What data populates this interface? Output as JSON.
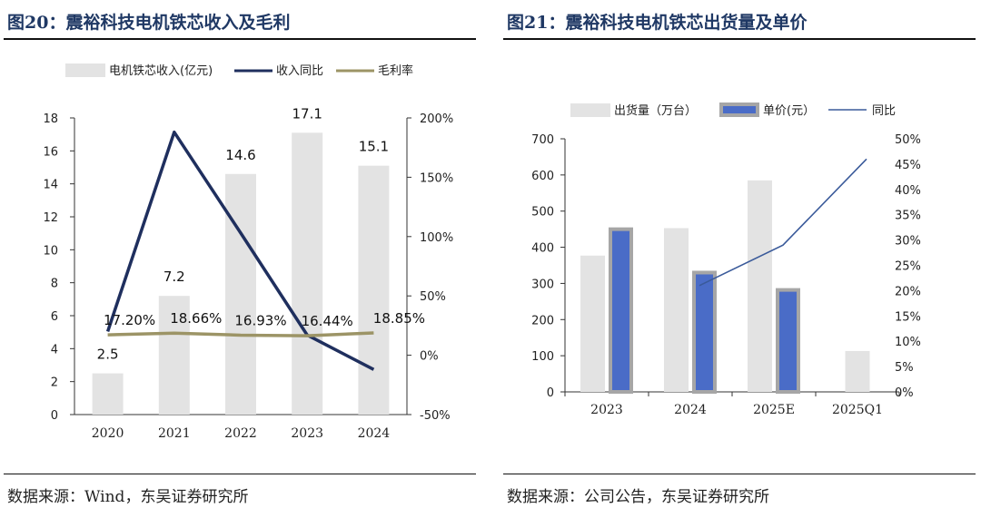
{
  "figure20": {
    "title": "图20：震裕科技电机铁芯收入及毛利",
    "source": "数据来源：Wind，东吴证券研究所"
  },
  "figure21": {
    "title": "图21：震裕科技电机铁芯出货量及单价",
    "source": "数据来源：公司公告，东吴证券研究所"
  },
  "chart_data": [
    {
      "type": "bar",
      "categories": [
        "2020",
        "2021",
        "2022",
        "2023",
        "2024"
      ],
      "series": [
        {
          "name": "电机铁芯收入(亿元)",
          "type": "bar",
          "axis": "left",
          "values": [
            2.5,
            7.2,
            14.6,
            17.1,
            15.1
          ],
          "data_labels": [
            "2.5",
            "7.2",
            "14.6",
            "17.1",
            "15.1"
          ],
          "color": "#e3e3e3"
        },
        {
          "name": "收入同比",
          "type": "line",
          "axis": "right",
          "values": [
            0.2,
            1.88,
            1.03,
            0.17,
            -0.12
          ],
          "color": "#1f2f5e"
        },
        {
          "name": "毛利率",
          "type": "line",
          "axis": "right",
          "values": [
            0.172,
            0.1866,
            0.1693,
            0.1644,
            0.1885
          ],
          "data_labels": [
            "17.20%",
            "18.66%",
            "16.93%",
            "16.44%",
            "18.85%"
          ],
          "color": "#9c9466"
        }
      ],
      "y_left": {
        "min": 0,
        "max": 18,
        "ticks": [
          "0",
          "2",
          "4",
          "6",
          "8",
          "10",
          "12",
          "14",
          "16",
          "18"
        ]
      },
      "y_right": {
        "min": -0.5,
        "max": 2.0,
        "ticks": [
          "-50%",
          "0%",
          "50%",
          "100%",
          "150%",
          "200%"
        ]
      },
      "legend_position": "top",
      "grid": false
    },
    {
      "type": "bar",
      "categories": [
        "2023",
        "2024",
        "2025E",
        "2025Q1"
      ],
      "series": [
        {
          "name": "出货量（万台）",
          "type": "bar",
          "axis": "left",
          "values": [
            377,
            453,
            585,
            113
          ],
          "color": "#e3e3e3"
        },
        {
          "name": "单价(元）",
          "type": "bar",
          "axis": "left",
          "values": [
            455,
            335,
            287,
            null
          ],
          "color": "#4a6cc7",
          "border": "#a6a6a6"
        },
        {
          "name": "同比",
          "type": "line",
          "axis": "right",
          "values": [
            null,
            0.21,
            0.29,
            0.46
          ],
          "color": "#3a5a9a"
        }
      ],
      "y_left": {
        "min": 0,
        "max": 700,
        "ticks": [
          "0",
          "100",
          "200",
          "300",
          "400",
          "500",
          "600",
          "700"
        ]
      },
      "y_right": {
        "min": 0,
        "max": 0.5,
        "ticks": [
          "0%",
          "5%",
          "10%",
          "15%",
          "20%",
          "25%",
          "30%",
          "35%",
          "40%",
          "45%",
          "50%"
        ]
      },
      "legend_position": "top",
      "grid": false
    }
  ]
}
